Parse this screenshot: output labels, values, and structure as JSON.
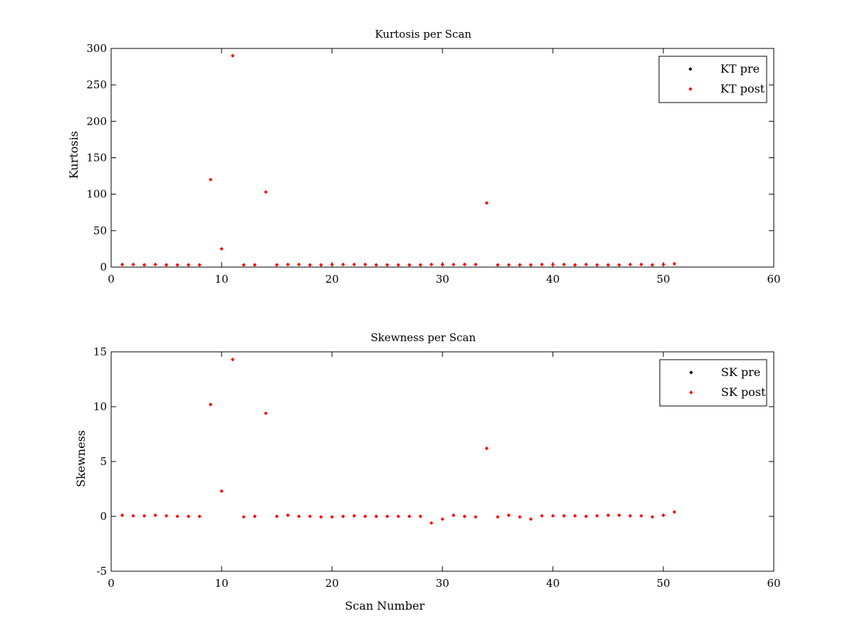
{
  "chart_data": [
    {
      "type": "scatter",
      "title": "Kurtosis per Scan",
      "xlabel": "",
      "ylabel": "Kurtosis",
      "xlim": [
        0,
        60
      ],
      "ylim": [
        0,
        300
      ],
      "xticks": [
        0,
        10,
        20,
        30,
        40,
        50,
        60
      ],
      "yticks": [
        0,
        50,
        100,
        150,
        200,
        250,
        300
      ],
      "grid": false,
      "legend_position": "top-right",
      "series": [
        {
          "name": "KT pre",
          "color": "#000000",
          "x": [],
          "y": []
        },
        {
          "name": "KT post",
          "color": "#ff0000",
          "x": [
            1,
            2,
            3,
            4,
            5,
            6,
            7,
            8,
            9,
            10,
            11,
            12,
            13,
            14,
            15,
            16,
            17,
            18,
            19,
            20,
            21,
            22,
            23,
            24,
            25,
            26,
            27,
            28,
            29,
            30,
            31,
            32,
            33,
            34,
            35,
            36,
            37,
            38,
            39,
            40,
            41,
            42,
            43,
            44,
            45,
            46,
            47,
            48,
            49,
            50,
            51
          ],
          "y": [
            3.5,
            3.6,
            3.0,
            3.6,
            3.0,
            3.0,
            3.0,
            3.0,
            120,
            25,
            290,
            3.0,
            3.0,
            103,
            3.0,
            3.5,
            3.6,
            3.0,
            3.0,
            3.6,
            3.6,
            3.6,
            3.6,
            3.0,
            3.0,
            3.0,
            3.0,
            3.0,
            3.6,
            3.6,
            3.6,
            3.6,
            3.6,
            88,
            3.0,
            3.0,
            3.0,
            3.0,
            3.6,
            3.6,
            3.6,
            3.0,
            3.6,
            3.0,
            3.0,
            3.0,
            3.6,
            3.6,
            3.0,
            3.6,
            4.5
          ]
        }
      ]
    },
    {
      "type": "scatter",
      "title": "Skewness per Scan",
      "xlabel": "Scan Number",
      "ylabel": "Skewness",
      "xlim": [
        0,
        60
      ],
      "ylim": [
        -5,
        15
      ],
      "xticks": [
        0,
        10,
        20,
        30,
        40,
        50,
        60
      ],
      "yticks": [
        -5,
        0,
        5,
        10,
        15
      ],
      "grid": false,
      "legend_position": "top-right",
      "series": [
        {
          "name": "SK pre",
          "color": "#000000",
          "x": [],
          "y": []
        },
        {
          "name": "SK post",
          "color": "#ff0000",
          "x": [
            1,
            2,
            3,
            4,
            5,
            6,
            7,
            8,
            9,
            10,
            11,
            12,
            13,
            14,
            15,
            16,
            17,
            18,
            19,
            20,
            21,
            22,
            23,
            24,
            25,
            26,
            27,
            28,
            29,
            30,
            31,
            32,
            33,
            34,
            35,
            36,
            37,
            38,
            39,
            40,
            41,
            42,
            43,
            44,
            45,
            46,
            47,
            48,
            49,
            50,
            51
          ],
          "y": [
            0.1,
            0.05,
            0.05,
            0.1,
            0.05,
            0.0,
            0.0,
            0.0,
            10.2,
            2.3,
            14.3,
            -0.05,
            0.0,
            9.4,
            0.0,
            0.1,
            0.0,
            0.0,
            -0.05,
            -0.05,
            0.0,
            0.05,
            0.0,
            0.0,
            0.0,
            0.0,
            0.0,
            0.0,
            -0.6,
            -0.25,
            0.1,
            0.0,
            -0.05,
            6.2,
            -0.05,
            0.1,
            -0.05,
            -0.25,
            0.05,
            0.05,
            0.05,
            0.05,
            0.0,
            0.05,
            0.1,
            0.1,
            0.05,
            0.05,
            -0.05,
            0.1,
            0.4
          ]
        }
      ]
    }
  ]
}
